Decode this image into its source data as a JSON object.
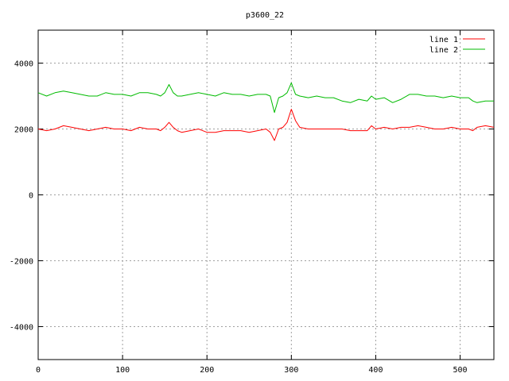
{
  "chart_data": {
    "type": "line",
    "title": "p3600_22",
    "xlabel": "",
    "ylabel": "",
    "xlim": [
      0,
      540
    ],
    "ylim": [
      -5000,
      5000
    ],
    "x_ticks": [
      0,
      100,
      200,
      300,
      400,
      500
    ],
    "y_ticks": [
      -4000,
      -2000,
      0,
      2000,
      4000
    ],
    "grid": true,
    "legend_position": "top-right",
    "series": [
      {
        "name": "line 1",
        "color": "#ff0000",
        "x": [
          0,
          10,
          20,
          30,
          40,
          50,
          60,
          70,
          80,
          90,
          100,
          110,
          120,
          130,
          140,
          145,
          150,
          155,
          160,
          165,
          170,
          180,
          190,
          200,
          210,
          220,
          230,
          240,
          250,
          260,
          270,
          275,
          280,
          285,
          290,
          295,
          300,
          305,
          310,
          320,
          330,
          340,
          350,
          360,
          370,
          380,
          390,
          395,
          400,
          410,
          420,
          430,
          440,
          450,
          460,
          470,
          480,
          490,
          500,
          510,
          515,
          520,
          530,
          540
        ],
        "values": [
          2000,
          1950,
          2000,
          2100,
          2050,
          2000,
          1950,
          2000,
          2050,
          2000,
          2000,
          1950,
          2050,
          2000,
          2000,
          1950,
          2050,
          2200,
          2050,
          1950,
          1900,
          1950,
          2000,
          1900,
          1900,
          1950,
          1950,
          1950,
          1900,
          1950,
          2000,
          1900,
          1650,
          2000,
          2050,
          2200,
          2600,
          2250,
          2050,
          2000,
          2000,
          2000,
          2000,
          2000,
          1950,
          1950,
          1950,
          2100,
          2000,
          2050,
          2000,
          2050,
          2050,
          2100,
          2050,
          2000,
          2000,
          2050,
          2000,
          2000,
          1950,
          2050,
          2100,
          2050
        ]
      },
      {
        "name": "line 2",
        "color": "#00bb00",
        "x": [
          0,
          10,
          20,
          30,
          40,
          50,
          60,
          70,
          80,
          90,
          100,
          110,
          120,
          130,
          140,
          145,
          150,
          155,
          160,
          165,
          170,
          180,
          190,
          200,
          210,
          220,
          230,
          240,
          250,
          260,
          270,
          275,
          280,
          285,
          290,
          295,
          300,
          305,
          310,
          320,
          330,
          340,
          350,
          360,
          370,
          380,
          390,
          395,
          400,
          410,
          420,
          430,
          440,
          450,
          460,
          470,
          480,
          490,
          500,
          510,
          515,
          520,
          530,
          540
        ],
        "values": [
          3100,
          3000,
          3100,
          3150,
          3100,
          3050,
          3000,
          3000,
          3100,
          3050,
          3050,
          3000,
          3100,
          3100,
          3050,
          3000,
          3100,
          3350,
          3100,
          3000,
          3000,
          3050,
          3100,
          3050,
          3000,
          3100,
          3050,
          3050,
          3000,
          3050,
          3050,
          3000,
          2500,
          2950,
          3000,
          3100,
          3400,
          3050,
          3000,
          2950,
          3000,
          2950,
          2950,
          2850,
          2800,
          2900,
          2850,
          3000,
          2900,
          2950,
          2800,
          2900,
          3050,
          3050,
          3000,
          3000,
          2950,
          3000,
          2950,
          2950,
          2850,
          2800,
          2850,
          2850
        ]
      }
    ]
  }
}
